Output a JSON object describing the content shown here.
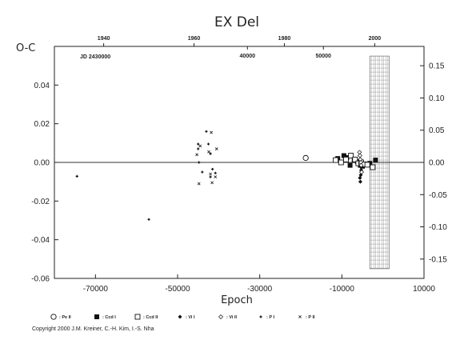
{
  "chart_data": {
    "type": "scatter",
    "title": "EX Del",
    "ylabel": "O-C",
    "xlabel": "Epoch",
    "xlim": [
      -80000,
      10000
    ],
    "ylim": [
      -0.06,
      0.06
    ],
    "x_ticks": [
      -70000,
      -50000,
      -30000,
      -10000,
      10000
    ],
    "x_tick_labels": [
      "-70000",
      "-50000",
      "-30000",
      "-10000",
      "10000"
    ],
    "y_ticks": [
      -0.06,
      -0.04,
      -0.02,
      0.0,
      0.02,
      0.04
    ],
    "y_tick_labels": [
      "-0.06",
      "-0.04",
      "-0.02",
      "0.00",
      "0.02",
      "0.04"
    ],
    "year_ticks": [
      1940,
      1960,
      1980,
      2000
    ],
    "year_tick_labels": [
      "1940",
      "1960",
      "1980",
      "2000"
    ],
    "year_tick_epochs": [
      -68000,
      -46000,
      -24000,
      -2000
    ],
    "jd_label": "JD 2430000",
    "jd_ticks": [
      40000,
      50000
    ],
    "jd_tick_labels": [
      "40000",
      "50000"
    ],
    "jd_tick_epochs": [
      -33000,
      -14500
    ],
    "right_ylim": [
      -0.18,
      0.18
    ],
    "right_ticks": [
      -0.15,
      -0.1,
      -0.05,
      0.0,
      0.05,
      0.1,
      0.15
    ],
    "right_tick_labels": [
      "-0.15",
      "-0.10",
      "-0.05",
      "0.00",
      "0.05",
      "0.10",
      "0.15"
    ],
    "grid_xrange": [
      -3200,
      1500
    ],
    "grid": false,
    "series": [
      {
        "name": "Pe II",
        "marker": "open-circle",
        "points": [
          [
            -18800,
            0.0023
          ]
        ]
      },
      {
        "name": "Ccd I",
        "marker": "filled-square",
        "points": [
          [
            -11000,
            0.002
          ],
          [
            -9500,
            0.0035
          ],
          [
            -8800,
            0.0025
          ],
          [
            -8000,
            -0.0015
          ],
          [
            -7000,
            0.001
          ],
          [
            -6200,
            0.0005
          ],
          [
            -5500,
            -0.0015
          ],
          [
            -5000,
            -0.002
          ],
          [
            -4200,
            -0.001
          ],
          [
            -3200,
            -0.0005
          ],
          [
            -1800,
            0.0012
          ]
        ]
      },
      {
        "name": "Ccd II",
        "marker": "open-square",
        "points": [
          [
            -11500,
            0.0012
          ],
          [
            -10200,
            0.0
          ],
          [
            -9000,
            0.0015
          ],
          [
            -7800,
            0.0035
          ],
          [
            -6800,
            0.0015
          ],
          [
            -6000,
            -0.0005
          ],
          [
            -5300,
            0.0
          ],
          [
            -4600,
            -0.001
          ],
          [
            -3800,
            -0.0012
          ],
          [
            -2500,
            -0.0025
          ]
        ]
      },
      {
        "name": "Vi I",
        "marker": "filled-diamond",
        "points": [
          [
            -5600,
            -0.008
          ],
          [
            -5500,
            -0.01
          ],
          [
            -5400,
            -0.0065
          ],
          [
            -5300,
            -0.004
          ]
        ]
      },
      {
        "name": "Vi II",
        "marker": "open-diamond",
        "points": [
          [
            -5700,
            0.0052
          ],
          [
            -5600,
            0.0035
          ],
          [
            -5500,
            0.0015
          ],
          [
            -5400,
            0.0
          ],
          [
            -5300,
            -0.0015
          ],
          [
            -5200,
            -0.005
          ]
        ]
      },
      {
        "name": "P I",
        "marker": "plus",
        "points": [
          [
            -74500,
            -0.0072
          ],
          [
            -57000,
            -0.0295
          ],
          [
            -45000,
            0.0095
          ],
          [
            -45000,
            0.007
          ],
          [
            -44800,
            0.0
          ],
          [
            -44000,
            -0.005
          ],
          [
            -43000,
            0.016
          ],
          [
            -42500,
            0.0095
          ],
          [
            -42000,
            0.0045
          ],
          [
            -41500,
            -0.0035
          ],
          [
            -40800,
            -0.0055
          ],
          [
            -42000,
            -0.0075
          ]
        ]
      },
      {
        "name": "P II",
        "marker": "cross",
        "points": [
          [
            -45300,
            0.004
          ],
          [
            -44800,
            -0.011
          ],
          [
            -42400,
            0.0055
          ],
          [
            -42000,
            -0.006
          ],
          [
            -41800,
            0.0155
          ],
          [
            -41600,
            -0.0105
          ],
          [
            -40800,
            -0.0075
          ],
          [
            -40500,
            0.007
          ],
          [
            -44500,
            0.0085
          ]
        ]
      }
    ],
    "legend": {
      "position": "bottom",
      "labels": [
        "Pe II",
        "Ccd I",
        "Ccd II",
        "Vi I",
        "Vi II",
        "P I",
        "P II"
      ],
      "display": [
        ": Pe II",
        ": Ccd I",
        ": Ccd II",
        ": Vi I",
        ": Vi II",
        ": P I",
        ": P II"
      ]
    }
  },
  "copyright": "Copyright 2000 J.M. Kreiner, C.-H. Kim, I.-S. Nha"
}
